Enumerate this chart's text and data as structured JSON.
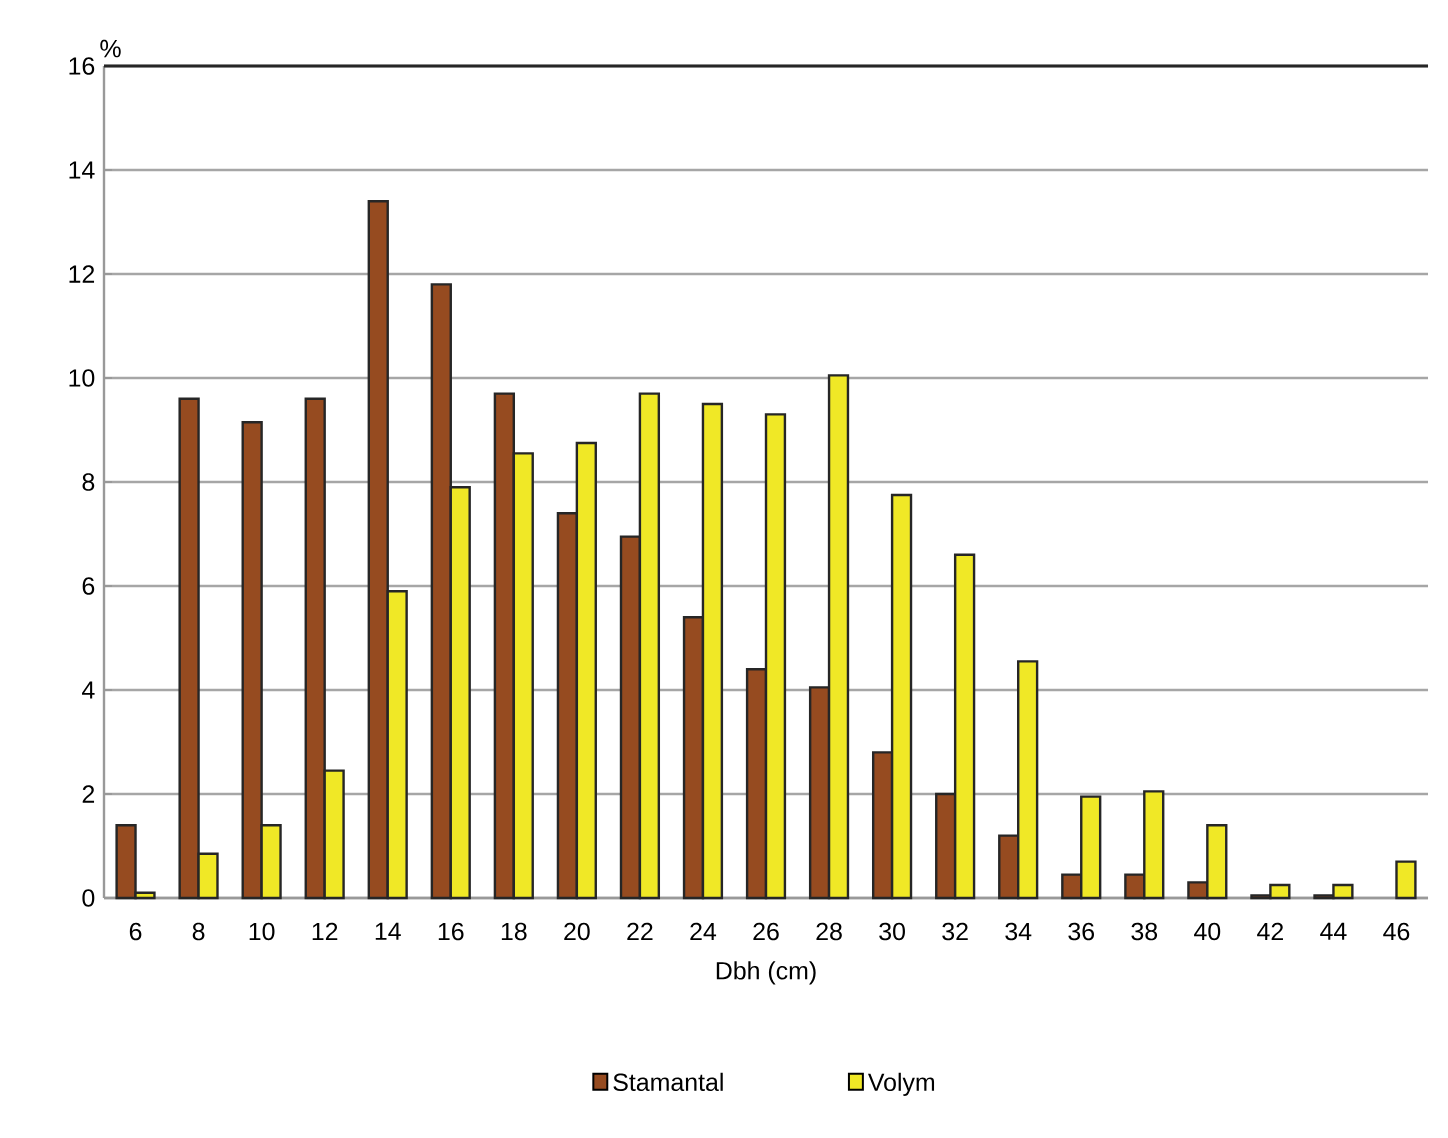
{
  "chart_data": {
    "type": "bar",
    "xlabel": "Dbh (cm)",
    "ylabel": "%",
    "categories": [
      "6",
      "8",
      "10",
      "12",
      "14",
      "16",
      "18",
      "20",
      "22",
      "24",
      "26",
      "28",
      "30",
      "32",
      "34",
      "36",
      "38",
      "40",
      "42",
      "44",
      "46"
    ],
    "series": [
      {
        "name": "Stamantal",
        "color": "#964b20",
        "values": [
          1.4,
          9.6,
          9.15,
          9.6,
          13.4,
          11.8,
          9.7,
          7.4,
          6.95,
          5.4,
          4.4,
          4.05,
          2.8,
          2.0,
          1.2,
          0.45,
          0.45,
          0.3,
          0.05,
          0.05,
          0
        ]
      },
      {
        "name": "Volym",
        "color": "#f0e826",
        "values": [
          0.1,
          0.85,
          1.4,
          2.45,
          5.9,
          7.9,
          8.55,
          8.75,
          9.7,
          9.5,
          9.3,
          10.05,
          7.75,
          6.6,
          4.55,
          1.95,
          2.05,
          1.4,
          0.25,
          0.25,
          0.7
        ]
      }
    ],
    "ylim": [
      0,
      16
    ],
    "yticks": [
      0,
      2,
      4,
      6,
      8,
      10,
      12,
      14,
      16
    ],
    "grid": "y",
    "legend": "bottom"
  }
}
